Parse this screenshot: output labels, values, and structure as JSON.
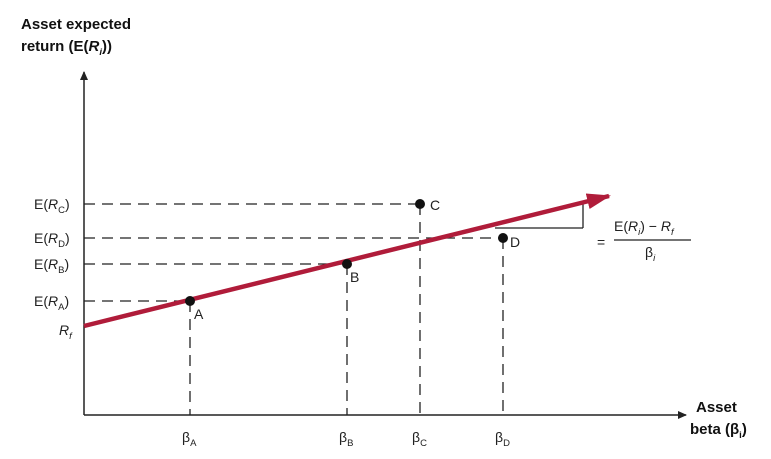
{
  "diagram": {
    "y_axis_title": {
      "line1": "Asset expected",
      "line2_prefix": "return (E(",
      "line2_var": "R",
      "line2_sub": "i",
      "line2_suffix": "))"
    },
    "x_axis_title": {
      "line1": "Asset",
      "line2_prefix": "beta (",
      "line2_var": "β",
      "line2_sub": "i",
      "line2_suffix": ")"
    },
    "rf_label": {
      "var": "R",
      "sub": "f"
    },
    "formula": {
      "equals": "=",
      "num_prefix": "E(",
      "num_var": "R",
      "num_sub": "i",
      "num_mid": ") − ",
      "num_var2": "R",
      "num_sub2": "f",
      "den_var": "β",
      "den_sub": "i"
    },
    "points": [
      {
        "name": "A",
        "y_label_prefix": "E(",
        "y_label_var": "R",
        "y_label_sub": "A",
        "y_label_suffix": ")",
        "x_label_var": "β",
        "x_label_sub": "A"
      },
      {
        "name": "B",
        "y_label_prefix": "E(",
        "y_label_var": "R",
        "y_label_sub": "B",
        "y_label_suffix": ")",
        "x_label_var": "β",
        "x_label_sub": "B"
      },
      {
        "name": "C",
        "y_label_prefix": "E(",
        "y_label_var": "R",
        "y_label_sub": "C",
        "y_label_suffix": ")",
        "x_label_var": "β",
        "x_label_sub": "C"
      },
      {
        "name": "D",
        "y_label_prefix": "E(",
        "y_label_var": "R",
        "y_label_sub": "D",
        "y_label_suffix": ")",
        "x_label_var": "β",
        "x_label_sub": "D"
      }
    ],
    "colors": {
      "line": "#b01c3a",
      "ink": "#222222"
    }
  }
}
